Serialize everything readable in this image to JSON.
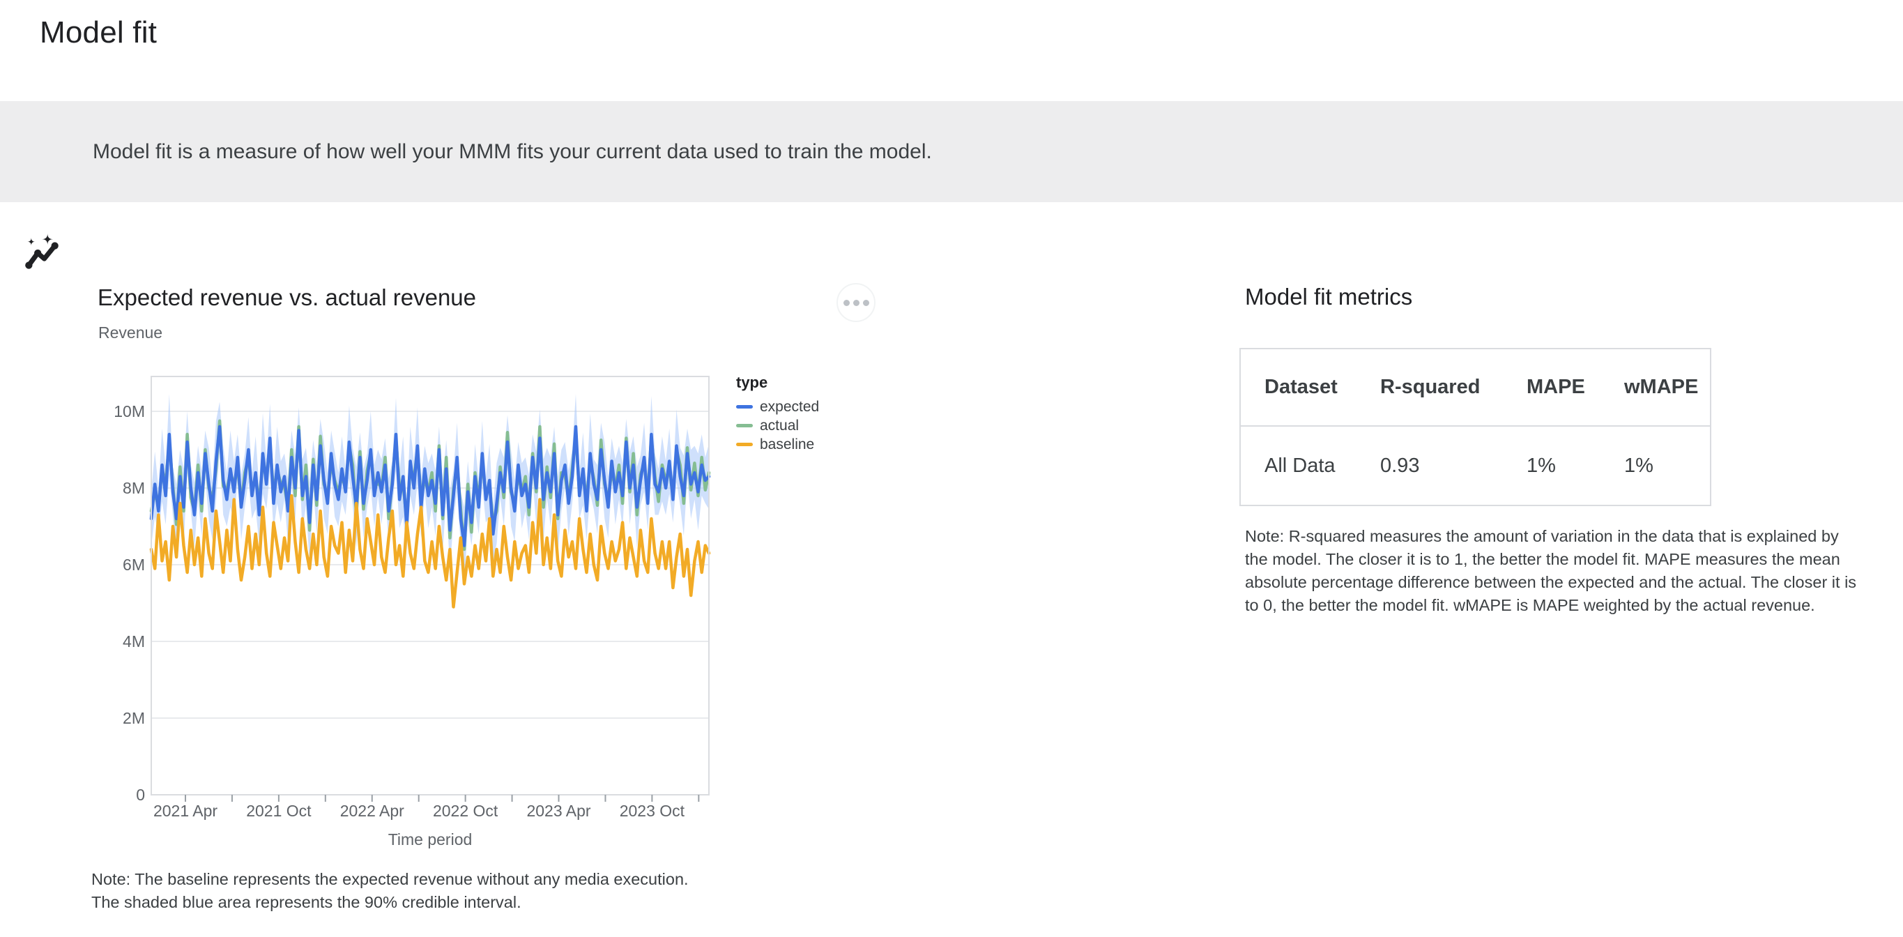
{
  "page": {
    "title": "Model fit"
  },
  "banner": {
    "icon": "insights-sparkle-icon",
    "text": "Model fit is a measure of how well your MMM fits your current data used to train the model."
  },
  "chart_card": {
    "title": "Expected revenue vs. actual revenue",
    "subtitle": "Revenue",
    "menu_tooltip": "More options",
    "note": "Note: The baseline represents the expected revenue without any media execution.\nThe shaded blue area represents the 90% credible interval."
  },
  "metrics": {
    "title": "Model fit metrics",
    "table": {
      "columns": [
        "Dataset",
        "R-squared",
        "MAPE",
        "wMAPE"
      ],
      "rows": [
        {
          "dataset": "All Data",
          "r_squared": "0.93",
          "mape": "1%",
          "wmape": "1%"
        }
      ]
    },
    "note": "Note: R-squared measures the amount of variation in the data that is explained by\nthe model. The closer it is to 1, the better the model fit. MAPE measures the mean\nabsolute percentage difference between the expected and the actual. The closer it is\nto 0, the better the model fit. wMAPE is MAPE weighted by the actual revenue."
  },
  "chart_data": {
    "type": "line",
    "title": "Expected revenue vs. actual revenue",
    "xlabel": "Time period",
    "ylabel": "Revenue",
    "unit": "millions",
    "x_range": [
      "2021 Jan",
      "2024 Jan"
    ],
    "x_frequency": "weekly",
    "x_tick_labels": [
      "2021 Apr",
      "2021 Oct",
      "2022 Apr",
      "2022 Oct",
      "2023 Apr",
      "2023 Oct"
    ],
    "y_ticks": [
      0,
      2,
      4,
      6,
      8,
      10
    ],
    "y_tick_labels": [
      "0",
      "2M",
      "4M",
      "6M",
      "8M",
      "10M"
    ],
    "ylim": [
      0,
      10.9
    ],
    "grid": true,
    "legend_title": "type",
    "legend_position": "right",
    "colors": {
      "expected": "#3E73E0",
      "actual": "#85BD92",
      "baseline": "#F2AB26",
      "band": "#A8C7FA"
    },
    "band": {
      "name": "90% credible interval",
      "around": "expected",
      "halfwidth": [
        0.7,
        0.85,
        0.6,
        0.95,
        0.75,
        1.05,
        0.65,
        0.9,
        0.7,
        1.0,
        0.8,
        0.6,
        0.85,
        0.7,
        0.85,
        0.6,
        0.95,
        0.75,
        1.05,
        0.65,
        0.9,
        0.7,
        1.0,
        0.8,
        0.6,
        0.85,
        0.7,
        0.85,
        0.6,
        0.95,
        0.75,
        1.05,
        0.65,
        0.9,
        0.7,
        1.0,
        0.8,
        0.6,
        0.85,
        0.7,
        0.85,
        0.6,
        0.95,
        0.75,
        1.05,
        0.65,
        0.9,
        0.7,
        1.0,
        0.8,
        0.6,
        0.85,
        0.7,
        0.85,
        0.6,
        0.95,
        0.75,
        1.05,
        0.65,
        0.9,
        0.7,
        1.0,
        0.8,
        0.6,
        0.85,
        0.7,
        0.85,
        0.6,
        0.95,
        0.75,
        1.05,
        0.65,
        0.9,
        0.7,
        1.0,
        0.8,
        0.6,
        0.85,
        0.7,
        0.85,
        0.6,
        0.95,
        0.75,
        1.05,
        0.65,
        0.9,
        0.7,
        1.0,
        0.8,
        0.6,
        0.85,
        0.7,
        0.85,
        0.6,
        0.95,
        0.75,
        1.05,
        0.65,
        0.9,
        0.7,
        1.0,
        0.8,
        0.6,
        0.85,
        0.7,
        0.85,
        0.6,
        0.95,
        0.75,
        1.05,
        0.65,
        0.9,
        0.7,
        1.0,
        0.8,
        0.6,
        0.85,
        0.7,
        0.85,
        0.6,
        0.95,
        0.75,
        1.05,
        0.65,
        0.9,
        0.7,
        1.0,
        0.8,
        0.6,
        0.85,
        0.7,
        0.85,
        0.6,
        0.95,
        0.75,
        1.05,
        0.65,
        0.9,
        0.7,
        1.0,
        0.8,
        0.6,
        0.85,
        0.7,
        0.85,
        0.6,
        0.95,
        0.75,
        1.05,
        0.65,
        0.9,
        0.7,
        1.0,
        0.8,
        0.6,
        0.85
      ]
    },
    "series": [
      {
        "name": "expected",
        "color": "#3E73E0",
        "values": [
          7.2,
          8.1,
          7.4,
          8.6,
          7.8,
          9.4,
          7.9,
          7.2,
          8.3,
          7.5,
          9.2,
          8.0,
          7.3,
          8.4,
          7.6,
          8.9,
          8.1,
          7.4,
          8.7,
          9.6,
          8.2,
          7.7,
          8.5,
          7.9,
          8.8,
          7.5,
          8.2,
          9.0,
          7.8,
          8.4,
          7.3,
          8.9,
          8.1,
          9.3,
          7.6,
          8.6,
          7.9,
          8.3,
          7.4,
          8.8,
          8.0,
          9.5,
          7.8,
          8.3,
          7.1,
          8.6,
          7.7,
          9.1,
          8.2,
          7.6,
          8.9,
          8.1,
          7.7,
          8.5,
          7.9,
          9.2,
          8.3,
          7.5,
          8.8,
          7.6,
          8.2,
          9.0,
          7.8,
          8.4,
          7.9,
          8.6,
          7.4,
          8.1,
          9.4,
          7.7,
          8.3,
          7.0,
          8.7,
          8.0,
          9.1,
          7.5,
          8.5,
          7.8,
          8.2,
          7.6,
          9.0,
          7.3,
          8.5,
          6.9,
          7.8,
          8.8,
          7.2,
          6.5,
          7.9,
          7.1,
          8.3,
          7.5,
          8.9,
          7.7,
          8.2,
          6.8,
          7.6,
          8.4,
          7.9,
          9.2,
          8.0,
          7.4,
          8.6,
          7.8,
          8.1,
          7.5,
          8.8,
          8.0,
          9.3,
          7.7,
          8.4,
          7.9,
          8.9,
          7.3,
          8.2,
          8.6,
          7.6,
          8.3,
          9.6,
          7.8,
          8.5,
          7.4,
          8.9,
          8.1,
          7.7,
          9.0,
          8.2,
          7.5,
          8.7,
          7.9,
          8.4,
          7.8,
          9.2,
          8.0,
          8.6,
          7.5,
          8.2,
          8.8,
          7.6,
          9.4,
          8.1,
          7.9,
          8.5,
          8.0,
          8.7,
          7.7,
          9.1,
          8.3,
          7.8,
          8.9,
          8.1,
          8.4,
          7.9,
          8.6,
          8.2,
          8.3
        ]
      },
      {
        "name": "actual",
        "color": "#85BD92",
        "values": [
          7.4,
          7.9,
          7.5,
          8.5,
          8.1,
          9.2,
          8.05,
          7.05,
          8.55,
          7.4,
          9.4,
          7.75,
          7.4,
          8.6,
          7.4,
          9.0,
          8.0,
          7.7,
          8.5,
          9.75,
          8.05,
          7.95,
          8.4,
          8.1,
          8.55,
          7.6,
          8.4,
          8.8,
          7.9,
          8.3,
          7.6,
          8.7,
          8.25,
          9.15,
          7.85,
          8.5,
          8.1,
          8.05,
          7.5,
          9.0,
          7.8,
          9.6,
          7.7,
          8.6,
          6.9,
          8.75,
          7.55,
          9.35,
          8.1,
          7.8,
          8.65,
          8.2,
          7.9,
          8.3,
          8.0,
          9.1,
          8.6,
          7.3,
          8.95,
          7.45,
          8.45,
          8.9,
          8.0,
          8.15,
          8.0,
          8.8,
          7.2,
          8.2,
          9.3,
          8.0,
          8.1,
          7.15,
          8.55,
          8.25,
          9.0,
          7.7,
          8.25,
          7.9,
          8.4,
          7.4,
          9.1,
          7.2,
          8.8,
          6.7,
          7.95,
          8.65,
          7.45,
          6.4,
          8.1,
          6.85,
          8.4,
          7.7,
          8.7,
          7.8,
          8.1,
          7.1,
          7.4,
          8.55,
          7.75,
          9.45,
          7.9,
          7.6,
          8.35,
          7.9,
          8.3,
          7.3,
          8.9,
          7.9,
          9.6,
          7.5,
          8.55,
          7.75,
          9.15,
          7.2,
          8.4,
          8.35,
          7.7,
          8.5,
          9.4,
          7.9,
          8.4,
          7.7,
          8.7,
          8.25,
          7.55,
          9.25,
          8.1,
          7.7,
          8.45,
          8.0,
          8.6,
          7.6,
          9.3,
          7.9,
          8.9,
          7.3,
          8.35,
          8.65,
          7.85,
          9.3,
          8.3,
          7.65,
          8.6,
          8.2,
          8.5,
          7.8,
          9.0,
          8.6,
          7.6,
          9.05,
          7.95,
          8.65,
          7.8,
          8.8,
          7.95,
          8.4
        ]
      },
      {
        "name": "baseline",
        "color": "#F2AB26",
        "values": [
          6.4,
          5.9,
          7.3,
          6.1,
          6.6,
          5.6,
          7.0,
          6.2,
          7.6,
          6.5,
          5.8,
          6.9,
          6.0,
          6.7,
          5.7,
          7.2,
          6.3,
          5.9,
          7.4,
          6.6,
          5.8,
          6.9,
          6.1,
          7.7,
          6.4,
          5.6,
          6.2,
          7.0,
          5.9,
          6.8,
          6.0,
          7.5,
          6.3,
          5.7,
          7.1,
          6.5,
          5.9,
          6.7,
          6.1,
          7.8,
          6.6,
          5.8,
          7.2,
          6.4,
          5.9,
          6.8,
          6.0,
          7.4,
          6.2,
          5.7,
          7.0,
          6.5,
          6.3,
          7.1,
          5.8,
          6.9,
          6.1,
          7.6,
          6.4,
          5.9,
          7.2,
          6.6,
          6.0,
          7.3,
          6.2,
          5.8,
          6.7,
          7.4,
          6.0,
          6.5,
          5.7,
          7.1,
          6.3,
          5.9,
          6.8,
          7.5,
          6.1,
          5.8,
          6.6,
          5.9,
          7.0,
          6.2,
          5.6,
          6.4,
          4.9,
          5.8,
          6.7,
          5.5,
          6.2,
          5.7,
          6.5,
          5.9,
          6.8,
          6.1,
          7.2,
          5.7,
          6.4,
          5.8,
          7.0,
          6.2,
          5.6,
          6.6,
          5.9,
          6.3,
          6.5,
          5.8,
          7.1,
          6.3,
          7.7,
          6.0,
          6.7,
          5.9,
          7.3,
          6.1,
          5.7,
          6.9,
          6.2,
          6.6,
          5.9,
          7.2,
          6.4,
          5.8,
          6.8,
          6.0,
          5.6,
          7.0,
          6.3,
          5.9,
          6.6,
          6.1,
          6.4,
          7.1,
          5.9,
          6.7,
          6.2,
          5.7,
          6.9,
          6.1,
          5.8,
          7.2,
          6.3,
          5.9,
          6.6,
          5.9,
          6.6,
          5.4,
          6.2,
          6.8,
          5.7,
          6.4,
          5.2,
          6.1,
          6.6,
          5.8,
          6.5,
          6.3
        ]
      }
    ]
  }
}
